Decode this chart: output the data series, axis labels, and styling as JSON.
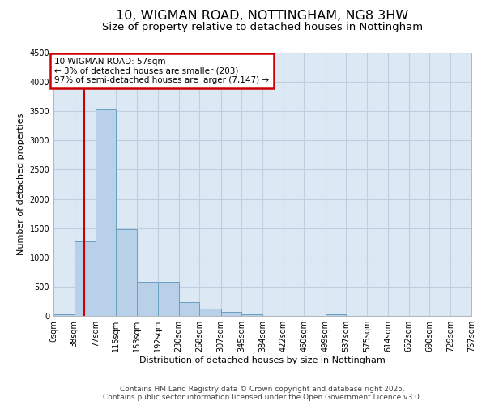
{
  "title_line1": "10, WIGMAN ROAD, NOTTINGHAM, NG8 3HW",
  "title_line2": "Size of property relative to detached houses in Nottingham",
  "xlabel": "Distribution of detached houses by size in Nottingham",
  "ylabel": "Number of detached properties",
  "bar_color": "#b8d0e8",
  "bar_edge_color": "#6a9fbf",
  "grid_color": "#c0cfe0",
  "background_color": "#dce8f4",
  "annotation_box_color": "#cc0000",
  "annotation_text": "10 WIGMAN ROAD: 57sqm\n← 3% of detached houses are smaller (203)\n97% of semi-detached houses are larger (7,147) →",
  "property_size": 57,
  "red_line_color": "#cc0000",
  "bin_edges": [
    0,
    38,
    77,
    115,
    153,
    192,
    230,
    268,
    307,
    345,
    384,
    422,
    460,
    499,
    537,
    575,
    614,
    652,
    690,
    729,
    767
  ],
  "bin_counts": [
    30,
    1280,
    3530,
    1480,
    580,
    580,
    240,
    120,
    65,
    30,
    0,
    0,
    0,
    30,
    0,
    0,
    0,
    0,
    0,
    0
  ],
  "ylim": [
    0,
    4500
  ],
  "yticks": [
    0,
    500,
    1000,
    1500,
    2000,
    2500,
    3000,
    3500,
    4000,
    4500
  ],
  "footer_line1": "Contains HM Land Registry data © Crown copyright and database right 2025.",
  "footer_line2": "Contains public sector information licensed under the Open Government Licence v3.0.",
  "title_fontsize": 11.5,
  "subtitle_fontsize": 9.5,
  "axis_label_fontsize": 8,
  "tick_label_fontsize": 7,
  "annotation_fontsize": 7.5,
  "footer_fontsize": 6.5
}
